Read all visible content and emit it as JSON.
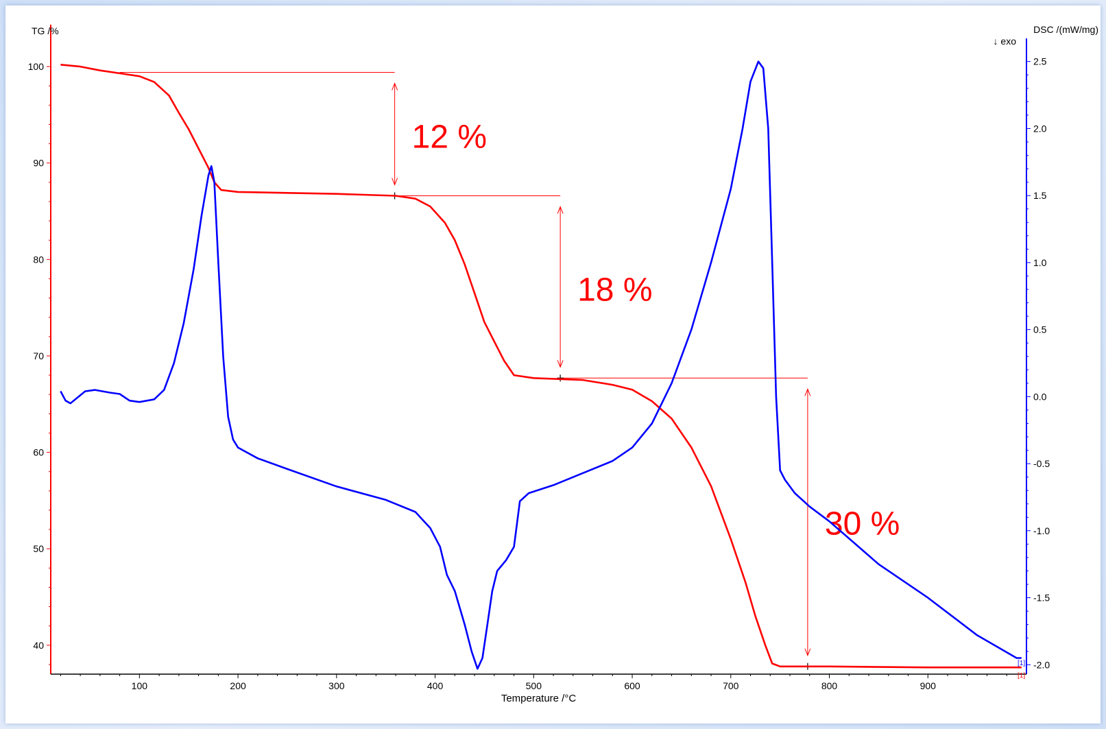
{
  "chart_data": {
    "type": "line",
    "xlabel": "Temperature /°C",
    "y_left_label": "TG /%",
    "y_right_label": "DSC /(mW/mg)",
    "y_right_sublabel": "↓ exo",
    "xlim": [
      10,
      1000
    ],
    "ylim_left": [
      37,
      101.5
    ],
    "ylim_right": [
      -2.07,
      2.57
    ],
    "x_ticks": [
      100,
      200,
      300,
      400,
      500,
      600,
      700,
      800,
      900
    ],
    "y_left_ticks": [
      40,
      50,
      60,
      70,
      80,
      90,
      100
    ],
    "y_right_ticks": [
      -2.0,
      -1.5,
      -1.0,
      -0.5,
      0.0,
      0.5,
      1.0,
      1.5,
      2.0,
      2.5
    ],
    "y_right_tick_labels": [
      "-2.0",
      "-1.5",
      "-1.0",
      "-0.5",
      "0.0",
      "0.5",
      "1.0",
      "1.5",
      "2.0",
      "2.5"
    ],
    "grid": false,
    "colors": {
      "tg": "#ff0000",
      "dsc": "#0000ff",
      "annotation": "#ff0000"
    },
    "series": [
      {
        "axis": "left",
        "points": [
          [
            20,
            100.2
          ],
          [
            40,
            100.0
          ],
          [
            60,
            99.6
          ],
          [
            80,
            99.3
          ],
          [
            100,
            99.0
          ],
          [
            115,
            98.4
          ],
          [
            130,
            97.0
          ],
          [
            140,
            95.2
          ],
          [
            150,
            93.5
          ],
          [
            160,
            91.5
          ],
          [
            170,
            89.5
          ],
          [
            176,
            88.0
          ],
          [
            183,
            87.2
          ],
          [
            200,
            87.0
          ],
          [
            250,
            86.9
          ],
          [
            300,
            86.8
          ],
          [
            360,
            86.6
          ],
          [
            380,
            86.3
          ],
          [
            395,
            85.5
          ],
          [
            410,
            83.8
          ],
          [
            420,
            82.0
          ],
          [
            430,
            79.5
          ],
          [
            440,
            76.5
          ],
          [
            450,
            73.5
          ],
          [
            460,
            71.5
          ],
          [
            470,
            69.5
          ],
          [
            480,
            68.0
          ],
          [
            500,
            67.7
          ],
          [
            525,
            67.6
          ],
          [
            550,
            67.5
          ],
          [
            580,
            67.0
          ],
          [
            600,
            66.5
          ],
          [
            620,
            65.3
          ],
          [
            640,
            63.5
          ],
          [
            660,
            60.5
          ],
          [
            680,
            56.5
          ],
          [
            700,
            51.0
          ],
          [
            715,
            46.5
          ],
          [
            725,
            43.0
          ],
          [
            735,
            40.0
          ],
          [
            742,
            38.1
          ],
          [
            750,
            37.8
          ],
          [
            800,
            37.8
          ],
          [
            900,
            37.7
          ],
          [
            995,
            37.7
          ]
        ]
      },
      {
        "axis": "right",
        "points": [
          [
            20,
            0.04
          ],
          [
            25,
            -0.03
          ],
          [
            30,
            -0.05
          ],
          [
            35,
            -0.02
          ],
          [
            45,
            0.04
          ],
          [
            55,
            0.05
          ],
          [
            70,
            0.03
          ],
          [
            80,
            0.02
          ],
          [
            90,
            -0.03
          ],
          [
            100,
            -0.04
          ],
          [
            115,
            -0.02
          ],
          [
            125,
            0.05
          ],
          [
            135,
            0.25
          ],
          [
            145,
            0.55
          ],
          [
            155,
            0.95
          ],
          [
            163,
            1.35
          ],
          [
            170,
            1.65
          ],
          [
            173,
            1.72
          ],
          [
            176,
            1.6
          ],
          [
            180,
            1.0
          ],
          [
            185,
            0.3
          ],
          [
            190,
            -0.15
          ],
          [
            195,
            -0.32
          ],
          [
            200,
            -0.38
          ],
          [
            220,
            -0.46
          ],
          [
            250,
            -0.54
          ],
          [
            300,
            -0.67
          ],
          [
            350,
            -0.77
          ],
          [
            380,
            -0.86
          ],
          [
            395,
            -0.98
          ],
          [
            405,
            -1.12
          ],
          [
            412,
            -1.33
          ],
          [
            420,
            -1.45
          ],
          [
            430,
            -1.7
          ],
          [
            437,
            -1.9
          ],
          [
            443,
            -2.03
          ],
          [
            448,
            -1.95
          ],
          [
            453,
            -1.7
          ],
          [
            458,
            -1.45
          ],
          [
            463,
            -1.3
          ],
          [
            472,
            -1.22
          ],
          [
            480,
            -1.12
          ],
          [
            486,
            -0.78
          ],
          [
            495,
            -0.72
          ],
          [
            520,
            -0.66
          ],
          [
            550,
            -0.57
          ],
          [
            580,
            -0.48
          ],
          [
            600,
            -0.38
          ],
          [
            620,
            -0.2
          ],
          [
            640,
            0.1
          ],
          [
            660,
            0.5
          ],
          [
            680,
            1.0
          ],
          [
            700,
            1.55
          ],
          [
            712,
            2.0
          ],
          [
            720,
            2.35
          ],
          [
            728,
            2.5
          ],
          [
            733,
            2.45
          ],
          [
            738,
            2.0
          ],
          [
            742,
            1.0
          ],
          [
            746,
            0.0
          ],
          [
            750,
            -0.55
          ],
          [
            755,
            -0.62
          ],
          [
            765,
            -0.72
          ],
          [
            780,
            -0.82
          ],
          [
            800,
            -0.93
          ],
          [
            850,
            -1.25
          ],
          [
            900,
            -1.5
          ],
          [
            950,
            -1.78
          ],
          [
            990,
            -1.95
          ],
          [
            995,
            -1.95
          ]
        ]
      }
    ],
    "annotations": [
      {
        "label": "12 %",
        "from": 99.4,
        "to": 86.6,
        "x": 359
      },
      {
        "label": "18 %",
        "from": 86.6,
        "to": 67.7,
        "x": 527
      },
      {
        "label": "30 %",
        "from": 67.7,
        "to": 37.8,
        "x": 778
      }
    ],
    "cursor_markers": [
      "[1]"
    ]
  }
}
